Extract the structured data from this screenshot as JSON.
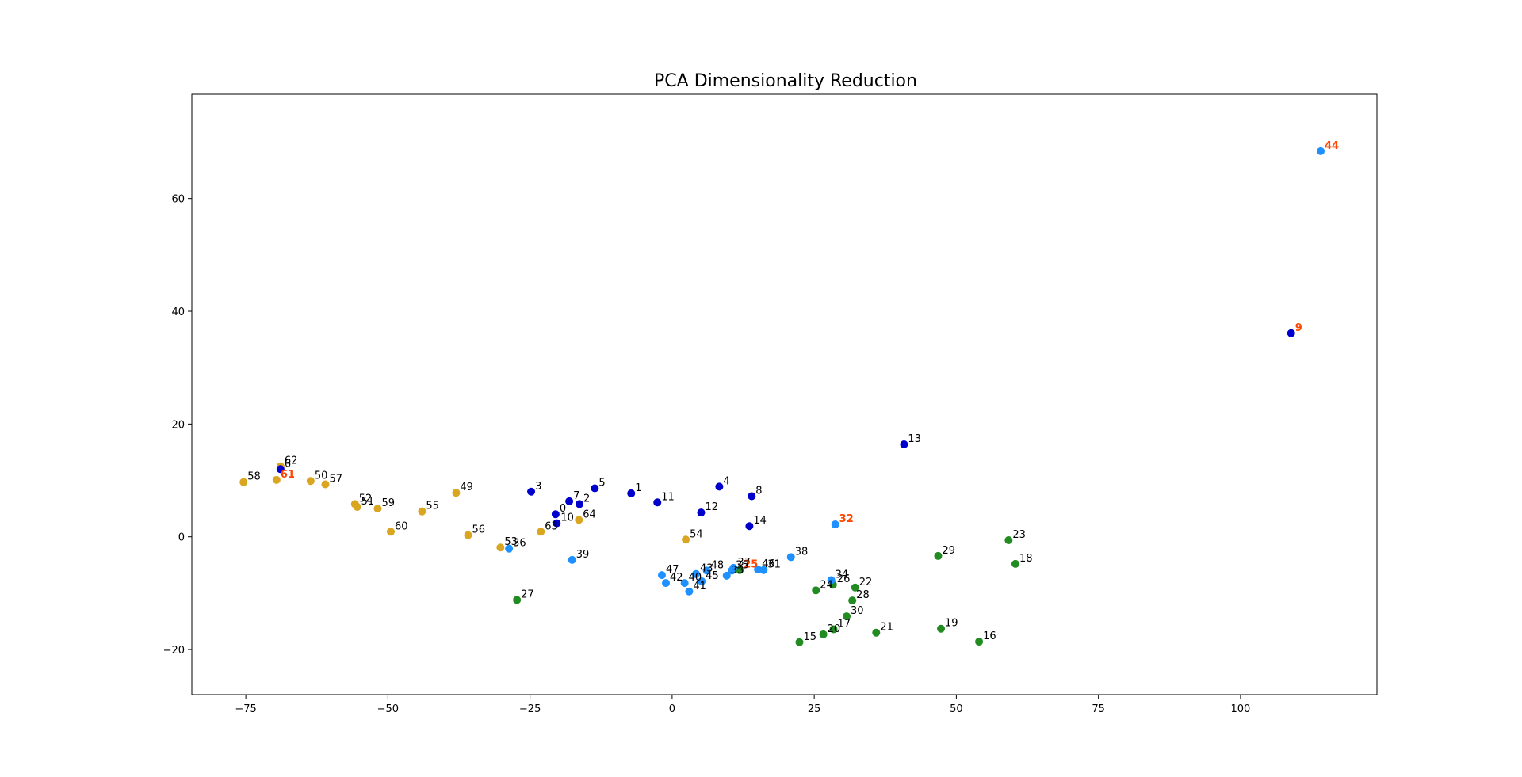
{
  "chart_data": {
    "type": "scatter",
    "title": "PCA Dimensionality Reduction",
    "xlabel": "",
    "ylabel": "",
    "xlim": [
      -84.5,
      124
    ],
    "ylim": [
      -28,
      78.5
    ],
    "xticks": [
      -75,
      -50,
      -25,
      0,
      25,
      50,
      75,
      100
    ],
    "yticks": [
      -20,
      0,
      20,
      40,
      60
    ],
    "tick_labels_x": [
      "−75",
      "−50",
      "−25",
      "0",
      "25",
      "50",
      "75",
      "100"
    ],
    "tick_labels_y": [
      "−20",
      "0",
      "20",
      "40",
      "60"
    ],
    "grid": false,
    "colors": {
      "darkblue": "#0000cd",
      "lightblue": "#1e90ff",
      "green": "#228b22",
      "orange": "#daa520",
      "highlight": "#ff4500"
    },
    "points": [
      {
        "label": "0",
        "x": -20.5,
        "y": 4.0,
        "color": "darkblue"
      },
      {
        "label": "1",
        "x": -7.2,
        "y": 7.7,
        "color": "darkblue"
      },
      {
        "label": "2",
        "x": -16.3,
        "y": 5.8,
        "color": "darkblue"
      },
      {
        "label": "3",
        "x": -24.8,
        "y": 8.0,
        "color": "darkblue"
      },
      {
        "label": "4",
        "x": 8.3,
        "y": 8.9,
        "color": "darkblue"
      },
      {
        "label": "5",
        "x": -13.6,
        "y": 8.6,
        "color": "darkblue"
      },
      {
        "label": "7",
        "x": -18.1,
        "y": 6.3,
        "color": "darkblue"
      },
      {
        "label": "8",
        "x": 14.0,
        "y": 7.2,
        "color": "darkblue"
      },
      {
        "label": "9",
        "x": 108.9,
        "y": 36.1,
        "color": "darkblue",
        "highlight": true
      },
      {
        "label": "10",
        "x": -20.3,
        "y": 2.4,
        "color": "darkblue"
      },
      {
        "label": "11",
        "x": -2.6,
        "y": 6.1,
        "color": "darkblue"
      },
      {
        "label": "12",
        "x": 5.1,
        "y": 4.3,
        "color": "darkblue"
      },
      {
        "label": "13",
        "x": 40.8,
        "y": 16.4,
        "color": "darkblue"
      },
      {
        "label": "14",
        "x": 13.6,
        "y": 1.9,
        "color": "darkblue"
      },
      {
        "label": "15",
        "x": 22.4,
        "y": -18.7,
        "color": "green"
      },
      {
        "label": "16",
        "x": 54.0,
        "y": -18.6,
        "color": "green"
      },
      {
        "label": "17",
        "x": 28.4,
        "y": -16.4,
        "color": "green"
      },
      {
        "label": "18",
        "x": 60.4,
        "y": -4.8,
        "color": "green"
      },
      {
        "label": "19",
        "x": 47.3,
        "y": -16.3,
        "color": "green"
      },
      {
        "label": "20",
        "x": 26.6,
        "y": -17.3,
        "color": "green"
      },
      {
        "label": "21",
        "x": 35.9,
        "y": -17.0,
        "color": "green"
      },
      {
        "label": "22",
        "x": 32.2,
        "y": -9.0,
        "color": "green"
      },
      {
        "label": "23",
        "x": 59.2,
        "y": -0.6,
        "color": "green"
      },
      {
        "label": "24",
        "x": 25.3,
        "y": -9.5,
        "color": "green"
      },
      {
        "label": "25",
        "x": 11.9,
        "y": -5.9,
        "color": "green",
        "highlight": true
      },
      {
        "label": "26",
        "x": 28.3,
        "y": -8.5,
        "color": "green"
      },
      {
        "label": "27",
        "x": -27.3,
        "y": -11.2,
        "color": "green"
      },
      {
        "label": "28",
        "x": 31.7,
        "y": -11.3,
        "color": "green"
      },
      {
        "label": "29",
        "x": 46.8,
        "y": -3.4,
        "color": "green"
      },
      {
        "label": "30",
        "x": 30.7,
        "y": -14.1,
        "color": "green"
      },
      {
        "label": "31",
        "x": 16.1,
        "y": -5.9,
        "color": "lightblue"
      },
      {
        "label": "32",
        "x": 28.7,
        "y": 2.2,
        "color": "lightblue",
        "highlight": true
      },
      {
        "label": "33",
        "x": 9.6,
        "y": -6.9,
        "color": "lightblue"
      },
      {
        "label": "34",
        "x": 28.0,
        "y": -7.7,
        "color": "lightblue"
      },
      {
        "label": "35",
        "x": 10.5,
        "y": -6.0,
        "color": "lightblue"
      },
      {
        "label": "36",
        "x": -28.7,
        "y": -2.1,
        "color": "lightblue"
      },
      {
        "label": "37",
        "x": 10.8,
        "y": -5.5,
        "color": "lightblue"
      },
      {
        "label": "38",
        "x": 20.9,
        "y": -3.6,
        "color": "lightblue"
      },
      {
        "label": "39",
        "x": -17.6,
        "y": -4.1,
        "color": "lightblue"
      },
      {
        "label": "40",
        "x": 2.2,
        "y": -8.2,
        "color": "lightblue"
      },
      {
        "label": "41",
        "x": 3.0,
        "y": -9.7,
        "color": "lightblue"
      },
      {
        "label": "42",
        "x": -1.1,
        "y": -8.2,
        "color": "lightblue"
      },
      {
        "label": "43",
        "x": 4.2,
        "y": -6.6,
        "color": "lightblue"
      },
      {
        "label": "44",
        "x": 114.1,
        "y": 68.4,
        "color": "lightblue",
        "highlight": true
      },
      {
        "label": "45",
        "x": 5.2,
        "y": -7.9,
        "color": "lightblue"
      },
      {
        "label": "46",
        "x": 15.1,
        "y": -5.8,
        "color": "lightblue"
      },
      {
        "label": "47",
        "x": -1.8,
        "y": -6.8,
        "color": "lightblue"
      },
      {
        "label": "48",
        "x": 6.1,
        "y": -6.0,
        "color": "lightblue"
      },
      {
        "label": "49",
        "x": -38.0,
        "y": 7.8,
        "color": "orange"
      },
      {
        "label": "50",
        "x": -63.6,
        "y": 9.9,
        "color": "orange"
      },
      {
        "label": "51",
        "x": -55.4,
        "y": 5.3,
        "color": "orange"
      },
      {
        "label": "52",
        "x": -55.8,
        "y": 5.8,
        "color": "orange"
      },
      {
        "label": "53",
        "x": -30.2,
        "y": -1.9,
        "color": "orange"
      },
      {
        "label": "54",
        "x": 2.4,
        "y": -0.5,
        "color": "orange"
      },
      {
        "label": "55",
        "x": -44.0,
        "y": 4.5,
        "color": "orange"
      },
      {
        "label": "56",
        "x": -35.9,
        "y": 0.3,
        "color": "orange"
      },
      {
        "label": "57",
        "x": -61.0,
        "y": 9.3,
        "color": "orange"
      },
      {
        "label": "58",
        "x": -75.4,
        "y": 9.7,
        "color": "orange"
      },
      {
        "label": "59",
        "x": -51.8,
        "y": 5.0,
        "color": "orange"
      },
      {
        "label": "60",
        "x": -49.5,
        "y": 0.9,
        "color": "orange"
      },
      {
        "label": "61",
        "x": -69.6,
        "y": 10.1,
        "color": "orange",
        "highlight": true
      },
      {
        "label": "62",
        "x": -68.9,
        "y": 12.5,
        "color": "orange"
      },
      {
        "label": "6",
        "x": -68.9,
        "y": 12.0,
        "color": "darkblue"
      },
      {
        "label": "63",
        "x": -23.1,
        "y": 0.9,
        "color": "orange"
      },
      {
        "label": "64",
        "x": -16.4,
        "y": 3.0,
        "color": "orange"
      }
    ]
  }
}
